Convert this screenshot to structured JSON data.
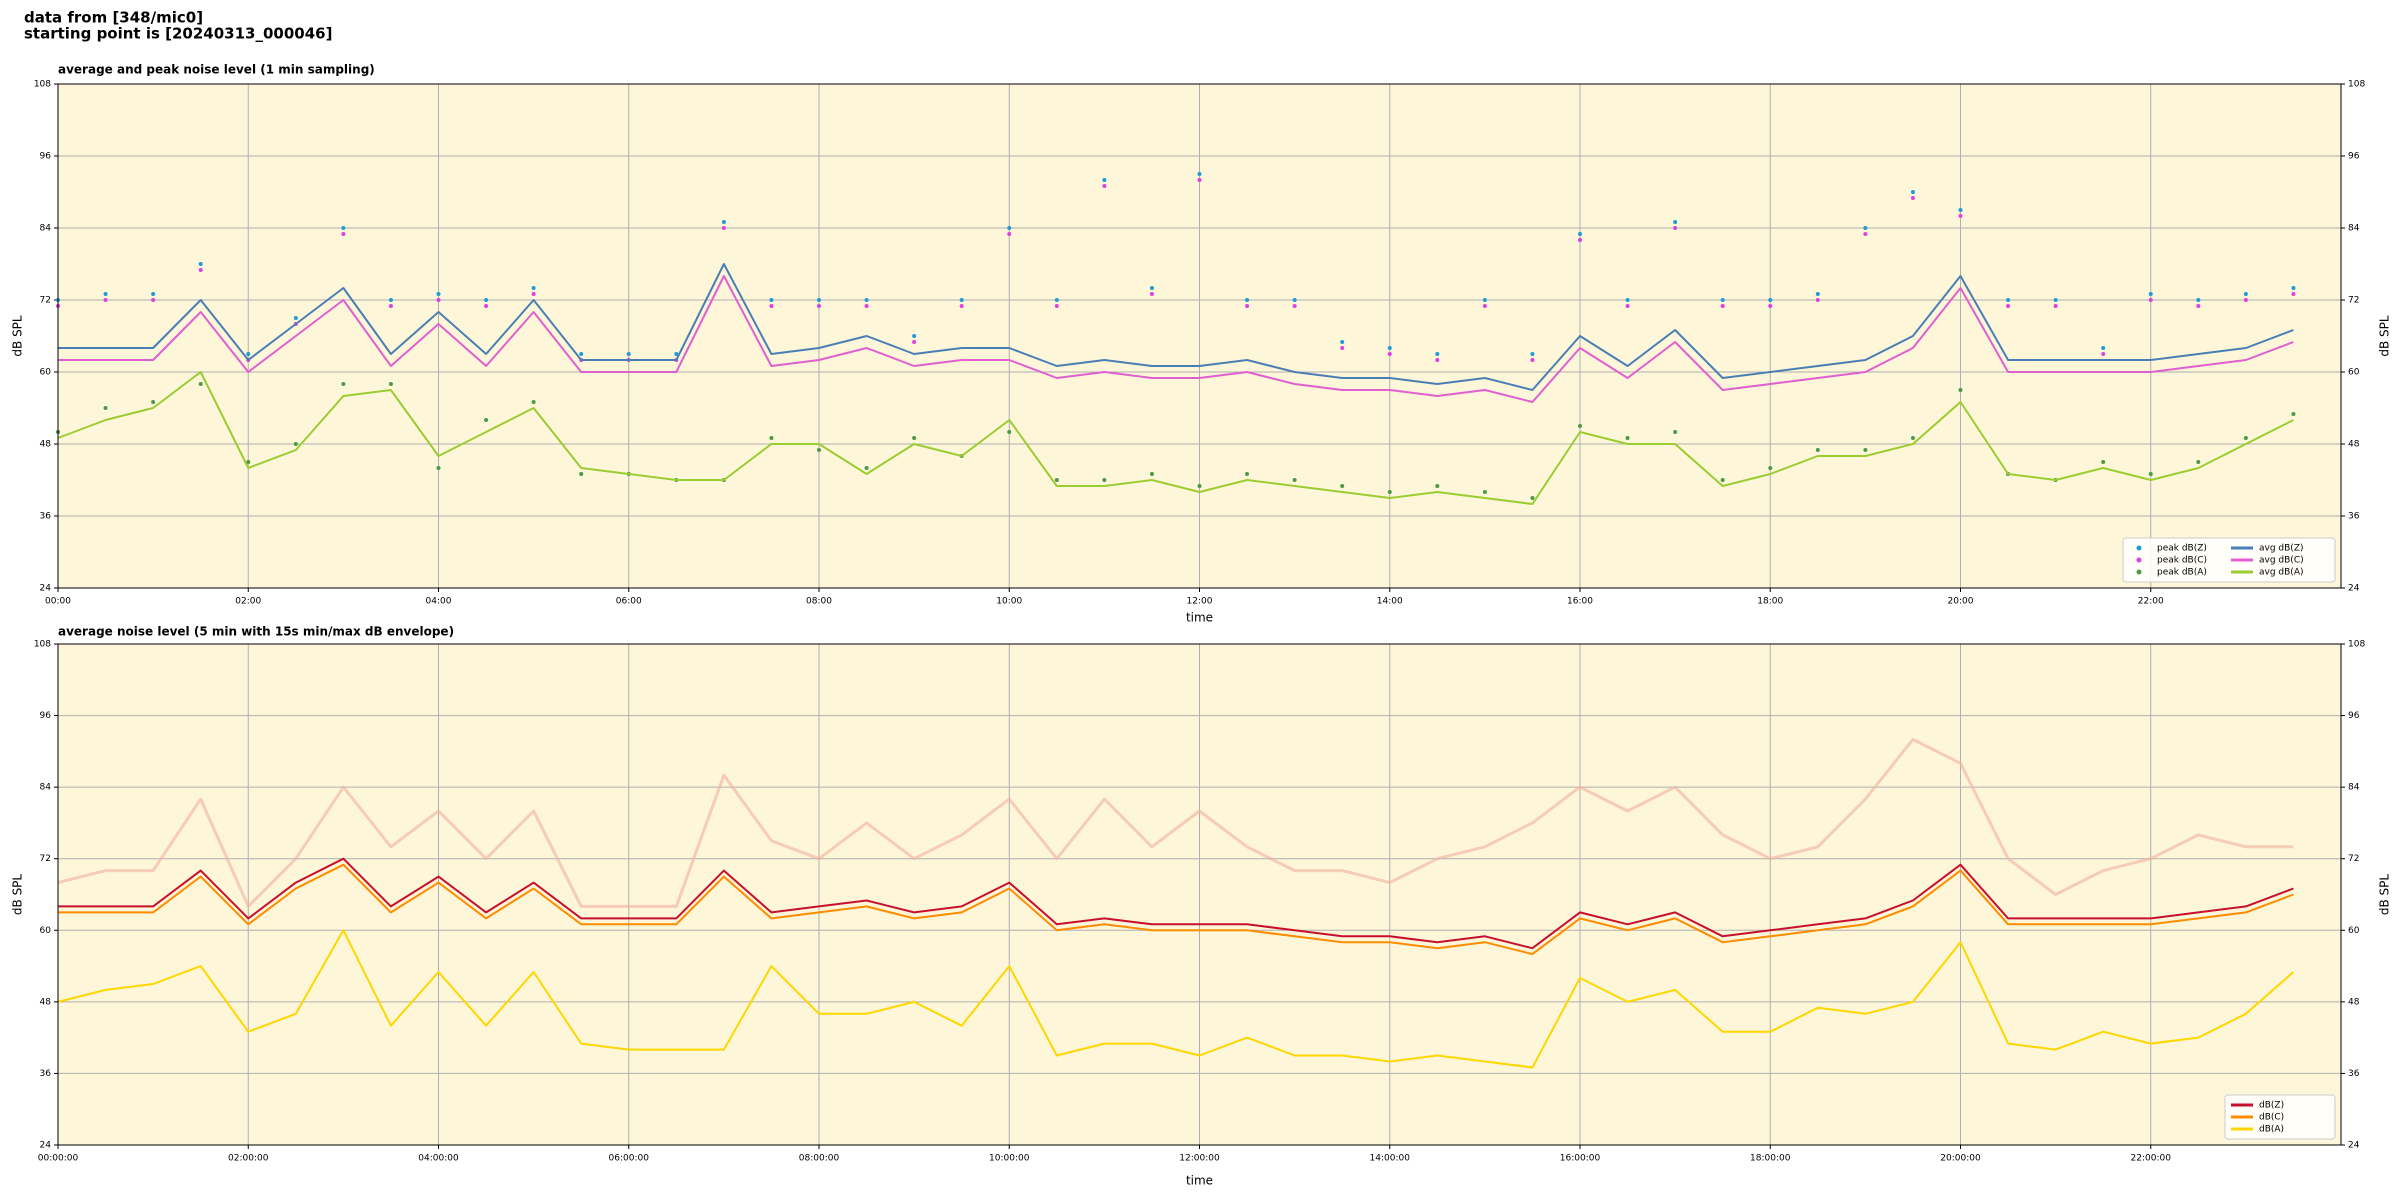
{
  "header": [
    "data from [348/mic0]",
    "starting point is [20240313_000046]"
  ],
  "chart_data": [
    {
      "type": "line",
      "title": "average and peak noise level (1 min sampling)",
      "x_label": "time",
      "y_label": "dB SPL",
      "facecolor": "#fdf6d8",
      "grid": true,
      "legend": "lower right",
      "xlim": [
        0,
        24
      ],
      "ylim": [
        24,
        108
      ],
      "yticks": [
        24,
        36,
        48,
        60,
        72,
        84,
        96,
        108
      ],
      "xticks": [
        {
          "value": 0,
          "label": "00:00"
        },
        {
          "value": 2,
          "label": "02:00"
        },
        {
          "value": 4,
          "label": "04:00"
        },
        {
          "value": 6,
          "label": "06:00"
        },
        {
          "value": 8,
          "label": "08:00"
        },
        {
          "value": 10,
          "label": "10:00"
        },
        {
          "value": 12,
          "label": "12:00"
        },
        {
          "value": 14,
          "label": "14:00"
        },
        {
          "value": 16,
          "label": "16:00"
        },
        {
          "value": 18,
          "label": "18:00"
        },
        {
          "value": 20,
          "label": "20:00"
        },
        {
          "value": 22,
          "label": "22:00"
        }
      ],
      "x": [
        0,
        0.5,
        1,
        1.5,
        2,
        2.5,
        3,
        3.5,
        4,
        4.5,
        5,
        5.5,
        6,
        6.5,
        7,
        7.5,
        8,
        8.5,
        9,
        9.5,
        10,
        10.5,
        11,
        11.5,
        12,
        12.5,
        13,
        13.5,
        14,
        14.5,
        15,
        15.5,
        16,
        16.5,
        17,
        17.5,
        18,
        18.5,
        19,
        19.5,
        20,
        20.5,
        21,
        21.5,
        22,
        22.5,
        23,
        23.5
      ],
      "series": [
        {
          "name": "peak dB(Z)",
          "type": "scatter",
          "color": "#1f9bd6",
          "values": [
            72,
            73,
            73,
            78,
            63,
            69,
            84,
            72,
            73,
            72,
            74,
            63,
            63,
            63,
            85,
            72,
            72,
            72,
            66,
            72,
            84,
            72,
            92,
            74,
            93,
            72,
            72,
            65,
            64,
            63,
            72,
            63,
            83,
            72,
            85,
            72,
            72,
            73,
            84,
            90,
            87,
            72,
            72,
            64,
            73,
            72,
            73,
            74
          ]
        },
        {
          "name": "peak dB(C)",
          "type": "scatter",
          "color": "#e040e0",
          "values": [
            71,
            72,
            72,
            77,
            62,
            68,
            83,
            71,
            72,
            71,
            73,
            62,
            62,
            62,
            84,
            71,
            71,
            71,
            65,
            71,
            83,
            71,
            91,
            73,
            92,
            71,
            71,
            64,
            63,
            62,
            71,
            62,
            82,
            71,
            84,
            71,
            71,
            72,
            83,
            89,
            86,
            71,
            71,
            63,
            72,
            71,
            72,
            73
          ]
        },
        {
          "name": "peak dB(A)",
          "type": "scatter",
          "color": "#4a9a4a",
          "values": [
            50,
            54,
            55,
            58,
            45,
            48,
            58,
            58,
            44,
            52,
            55,
            43,
            43,
            42,
            42,
            49,
            47,
            44,
            49,
            46,
            50,
            42,
            42,
            43,
            41,
            43,
            42,
            41,
            40,
            41,
            40,
            39,
            51,
            49,
            50,
            42,
            44,
            47,
            47,
            49,
            57,
            43,
            42,
            45,
            43,
            45,
            49,
            53
          ]
        },
        {
          "name": "avg dB(Z)",
          "type": "line",
          "color": "#4a7fb5",
          "values": [
            64,
            64,
            64,
            72,
            62,
            68,
            74,
            63,
            70,
            63,
            72,
            62,
            62,
            62,
            78,
            63,
            64,
            66,
            63,
            64,
            64,
            61,
            62,
            61,
            61,
            62,
            60,
            59,
            59,
            58,
            59,
            57,
            66,
            61,
            67,
            59,
            60,
            61,
            62,
            66,
            76,
            62,
            62,
            62,
            62,
            63,
            64,
            67
          ]
        },
        {
          "name": "avg dB(C)",
          "type": "line",
          "color": "#e060d0",
          "values": [
            62,
            62,
            62,
            70,
            60,
            66,
            72,
            61,
            68,
            61,
            70,
            60,
            60,
            60,
            76,
            61,
            62,
            64,
            61,
            62,
            62,
            59,
            60,
            59,
            59,
            60,
            58,
            57,
            57,
            56,
            57,
            55,
            64,
            59,
            65,
            57,
            58,
            59,
            60,
            64,
            74,
            60,
            60,
            60,
            60,
            61,
            62,
            65
          ]
        },
        {
          "name": "avg dB(A)",
          "type": "line",
          "color": "#9acd32",
          "values": [
            49,
            52,
            54,
            60,
            44,
            47,
            56,
            57,
            46,
            50,
            54,
            44,
            43,
            42,
            42,
            48,
            48,
            43,
            48,
            46,
            52,
            41,
            41,
            42,
            40,
            42,
            41,
            40,
            39,
            40,
            39,
            38,
            50,
            48,
            48,
            41,
            43,
            46,
            46,
            48,
            55,
            43,
            42,
            44,
            42,
            44,
            48,
            52
          ]
        }
      ]
    },
    {
      "type": "line",
      "title": "average noise level (5 min with 15s min/max dB envelope)",
      "x_label": "time",
      "y_label": "dB SPL",
      "facecolor": "#fdf6d8",
      "grid": true,
      "legend": "lower right",
      "xlim": [
        0,
        24
      ],
      "ylim": [
        24,
        108
      ],
      "yticks": [
        24,
        36,
        48,
        60,
        72,
        84,
        96,
        108
      ],
      "xticks": [
        {
          "value": 0,
          "label": "00:00:00"
        },
        {
          "value": 2,
          "label": "02:00:00"
        },
        {
          "value": 4,
          "label": "04:00:00"
        },
        {
          "value": 6,
          "label": "06:00:00"
        },
        {
          "value": 8,
          "label": "08:00:00"
        },
        {
          "value": 10,
          "label": "10:00:00"
        },
        {
          "value": 12,
          "label": "12:00:00"
        },
        {
          "value": 14,
          "label": "14:00:00"
        },
        {
          "value": 16,
          "label": "16:00:00"
        },
        {
          "value": 18,
          "label": "18:00:00"
        },
        {
          "value": 20,
          "label": "20:00:00"
        },
        {
          "value": 22,
          "label": "22:00:00"
        }
      ],
      "x": [
        0,
        0.5,
        1,
        1.5,
        2,
        2.5,
        3,
        3.5,
        4,
        4.5,
        5,
        5.5,
        6,
        6.5,
        7,
        7.5,
        8,
        8.5,
        9,
        9.5,
        10,
        10.5,
        11,
        11.5,
        12,
        12.5,
        13,
        13.5,
        14,
        14.5,
        15,
        15.5,
        16,
        16.5,
        17,
        17.5,
        18,
        18.5,
        19,
        19.5,
        20,
        20.5,
        21,
        21.5,
        22,
        22.5,
        23,
        23.5
      ],
      "envelope": {
        "color": "#f4b0a0",
        "values": [
          68,
          70,
          70,
          82,
          64,
          72,
          84,
          74,
          80,
          72,
          80,
          64,
          64,
          64,
          86,
          75,
          72,
          78,
          72,
          76,
          82,
          72,
          82,
          74,
          80,
          74,
          70,
          70,
          68,
          72,
          74,
          78,
          84,
          80,
          84,
          76,
          72,
          74,
          82,
          92,
          88,
          72,
          66,
          70,
          72,
          76,
          74,
          74
        ]
      },
      "series": [
        {
          "name": "dB(Z)",
          "type": "line",
          "color": "#c8102e",
          "values": [
            64,
            64,
            64,
            70,
            62,
            68,
            72,
            64,
            69,
            63,
            68,
            62,
            62,
            62,
            70,
            63,
            64,
            65,
            63,
            64,
            68,
            61,
            62,
            61,
            61,
            61,
            60,
            59,
            59,
            58,
            59,
            57,
            63,
            61,
            63,
            59,
            60,
            61,
            62,
            65,
            71,
            62,
            62,
            62,
            62,
            63,
            64,
            67
          ]
        },
        {
          "name": "dB(C)",
          "type": "line",
          "color": "#ff8c00",
          "values": [
            63,
            63,
            63,
            69,
            61,
            67,
            71,
            63,
            68,
            62,
            67,
            61,
            61,
            61,
            69,
            62,
            63,
            64,
            62,
            63,
            67,
            60,
            61,
            60,
            60,
            60,
            59,
            58,
            58,
            57,
            58,
            56,
            62,
            60,
            62,
            58,
            59,
            60,
            61,
            64,
            70,
            61,
            61,
            61,
            61,
            62,
            63,
            66
          ]
        },
        {
          "name": "dB(A)",
          "type": "line",
          "color": "#ffd700",
          "values": [
            48,
            50,
            51,
            54,
            43,
            46,
            60,
            44,
            53,
            44,
            53,
            41,
            40,
            40,
            40,
            54,
            46,
            46,
            48,
            44,
            54,
            39,
            41,
            41,
            39,
            42,
            39,
            39,
            38,
            39,
            38,
            37,
            52,
            48,
            50,
            43,
            43,
            47,
            46,
            48,
            58,
            41,
            40,
            43,
            41,
            42,
            46,
            53
          ]
        }
      ]
    }
  ]
}
